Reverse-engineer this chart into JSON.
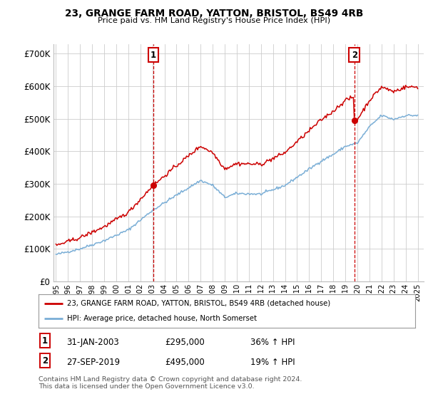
{
  "title": "23, GRANGE FARM ROAD, YATTON, BRISTOL, BS49 4RB",
  "subtitle": "Price paid vs. HM Land Registry's House Price Index (HPI)",
  "ylabel_ticks": [
    "£0",
    "£100K",
    "£200K",
    "£300K",
    "£400K",
    "£500K",
    "£600K",
    "£700K"
  ],
  "ylim": [
    0,
    730000
  ],
  "xlim_start": 1994.8,
  "xlim_end": 2025.5,
  "hpi_color": "#7aaed6",
  "price_color": "#cc0000",
  "marker1_date": 2003.08,
  "marker1_price": 295000,
  "marker1_text": "31-JAN-2003",
  "marker1_amount": "£295,000",
  "marker1_pct": "36% ↑ HPI",
  "marker2_date": 2019.75,
  "marker2_price": 495000,
  "marker2_text": "27-SEP-2019",
  "marker2_amount": "£495,000",
  "marker2_pct": "19% ↑ HPI",
  "legend_line1": "23, GRANGE FARM ROAD, YATTON, BRISTOL, BS49 4RB (detached house)",
  "legend_line2": "HPI: Average price, detached house, North Somerset",
  "footer": "Contains HM Land Registry data © Crown copyright and database right 2024.\nThis data is licensed under the Open Government Licence v3.0.",
  "background_color": "#ffffff",
  "grid_color": "#cccccc"
}
